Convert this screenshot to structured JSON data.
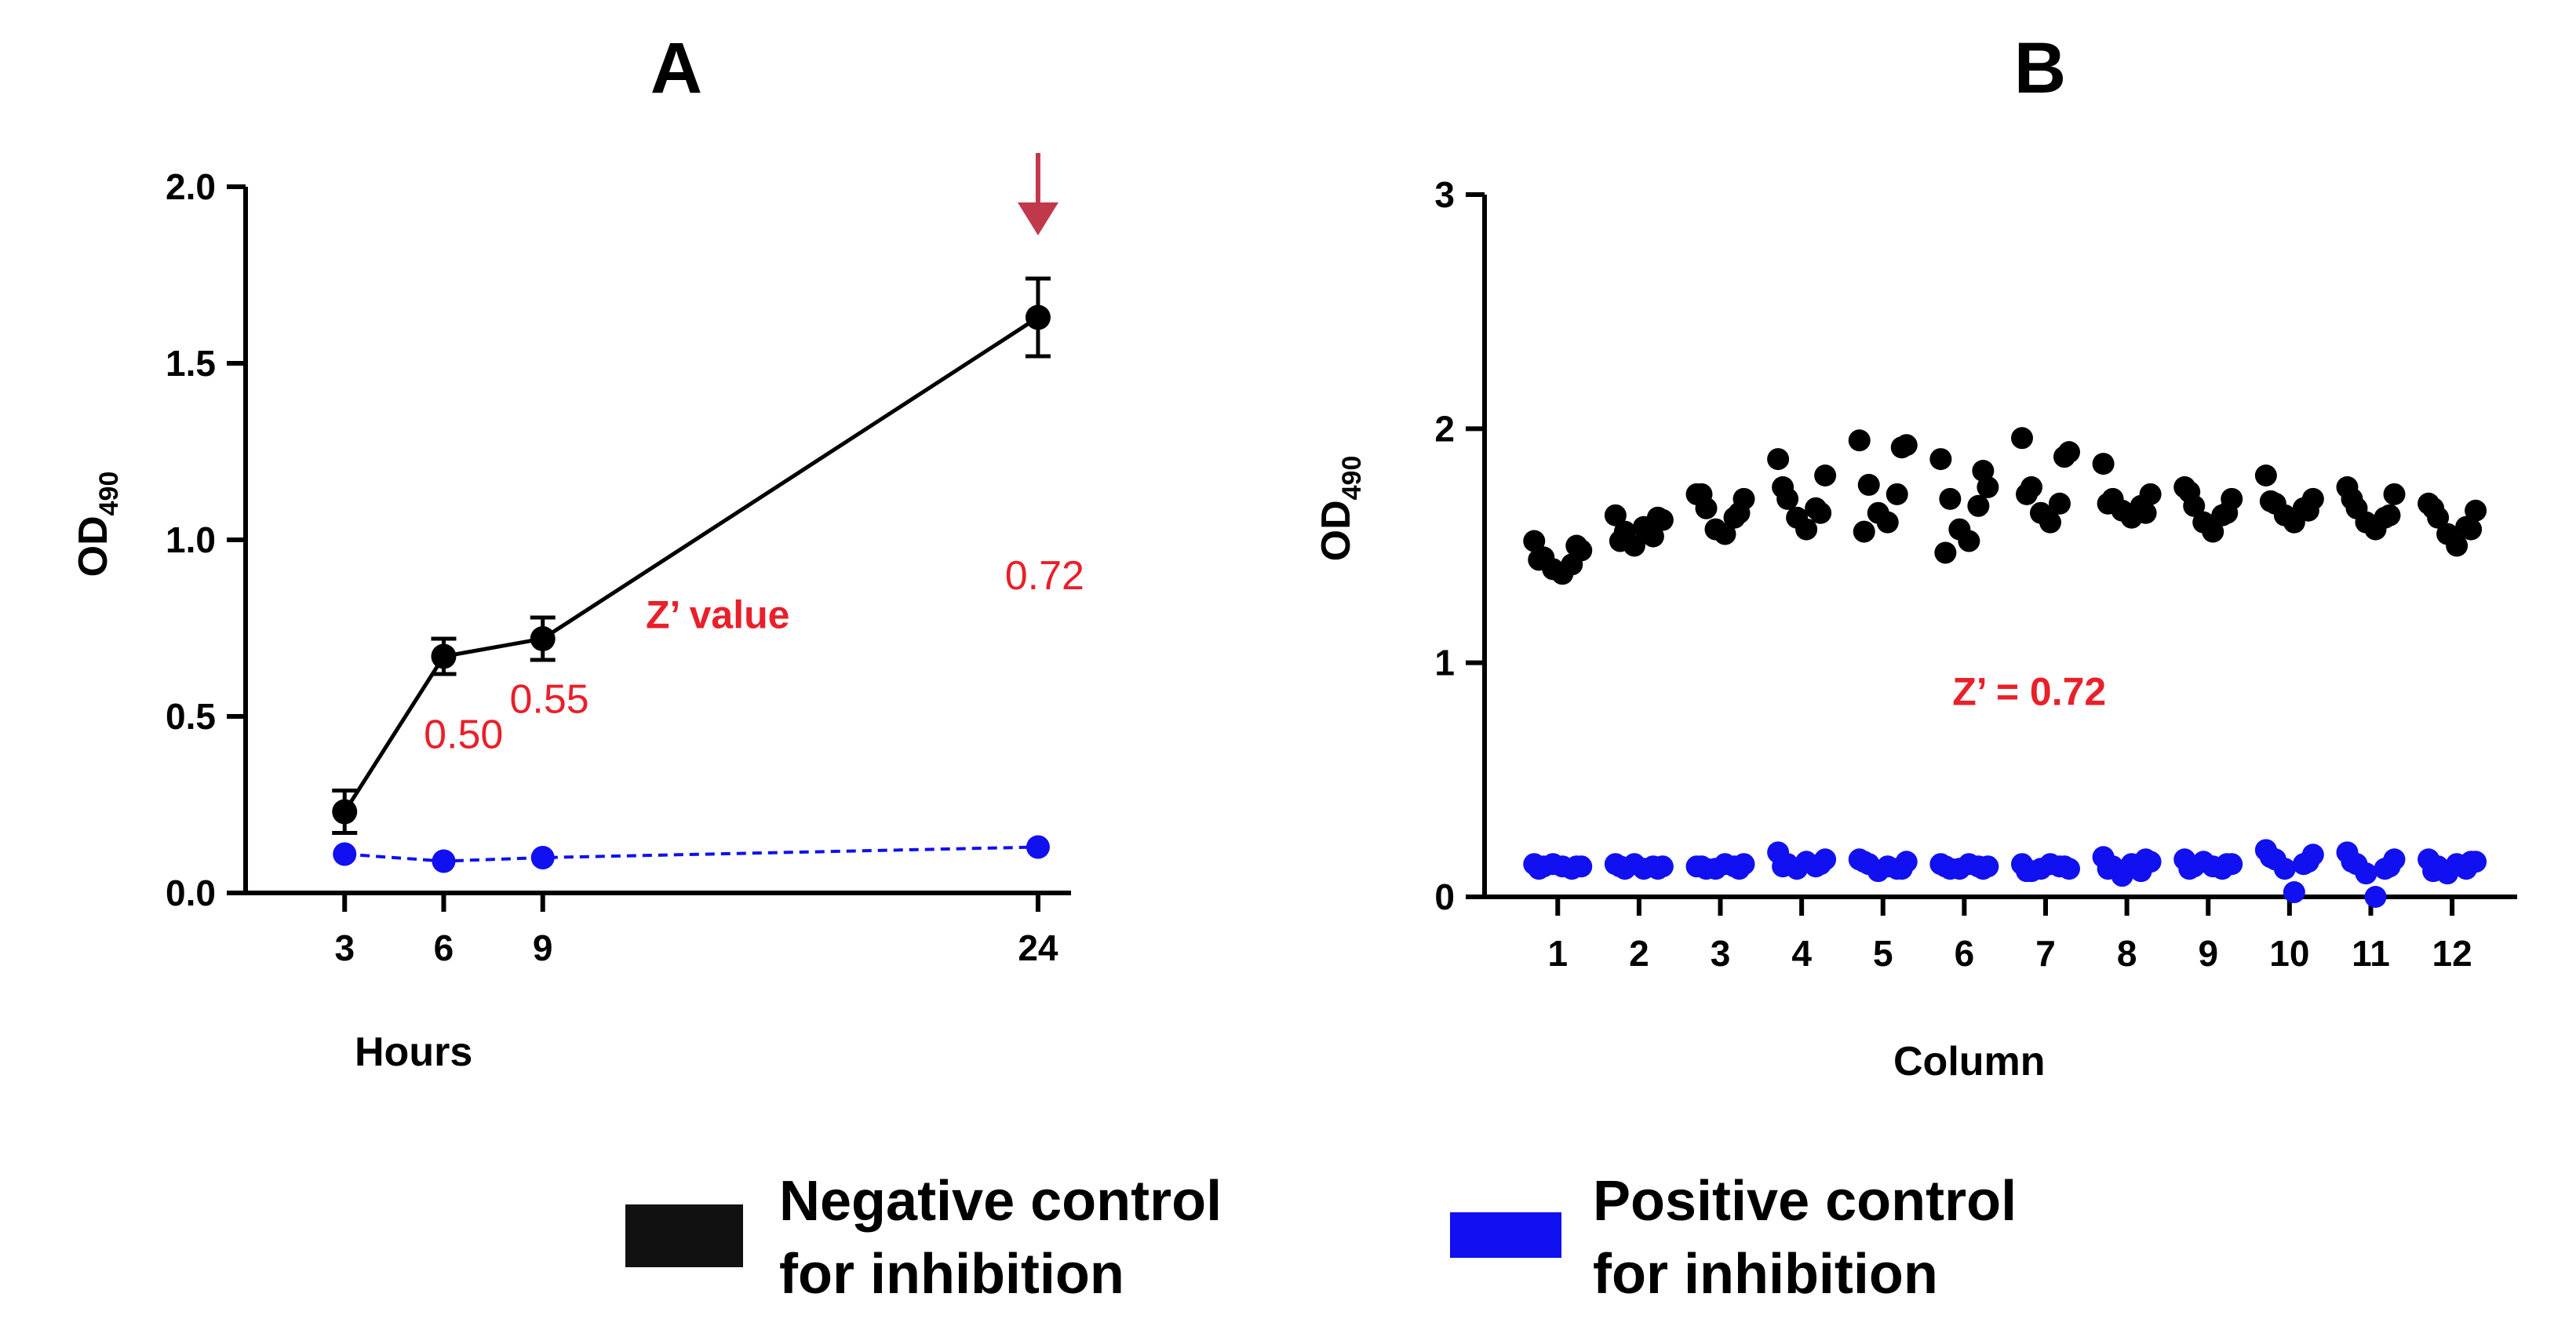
{
  "colors": {
    "negative": "#000000",
    "positive": "#1010f0",
    "annotation": "#e8202a",
    "arrow": "#c0394a"
  },
  "chart_data": [
    {
      "panel": "A",
      "type": "line",
      "title": "A",
      "xlabel": "Hours",
      "ylabel": "OD",
      "ylabel_subscript": "490",
      "x": [
        3,
        6,
        9,
        24
      ],
      "xlim": [
        0,
        25
      ],
      "ylim": [
        0,
        2.0
      ],
      "xticks": [
        "3",
        "6",
        "9",
        "24"
      ],
      "yticks": [
        "0.0",
        "0.5",
        "1.0",
        "1.5",
        "2.0"
      ],
      "series": [
        {
          "name": "Negative control for inhibition",
          "values": [
            0.23,
            0.67,
            0.72,
            1.63
          ],
          "errors": [
            0.06,
            0.05,
            0.06,
            0.11
          ],
          "style": "solid"
        },
        {
          "name": "Positive control for inhibition",
          "values": [
            0.11,
            0.09,
            0.1,
            0.13
          ],
          "style": "dashed"
        }
      ],
      "annotations": [
        {
          "text": "Z’ value",
          "x": 14.3,
          "y": 0.75
        },
        {
          "text": "0.50",
          "x": 6.6,
          "y": 0.41
        },
        {
          "text": "0.55",
          "x": 9.2,
          "y": 0.51
        },
        {
          "text": "0.72",
          "x": 24.2,
          "y": 0.86
        }
      ],
      "arrow_at_x": 24
    },
    {
      "panel": "B",
      "type": "scatter",
      "title": "B",
      "xlabel": "Column",
      "ylabel": "OD",
      "ylabel_subscript": "490",
      "categories": [
        "1",
        "2",
        "3",
        "4",
        "5",
        "6",
        "7",
        "8",
        "9",
        "10",
        "11",
        "12"
      ],
      "xlim": [
        0.1,
        12.8
      ],
      "ylim": [
        0,
        3
      ],
      "yticks": [
        "0",
        "1",
        "2",
        "3"
      ],
      "series": [
        {
          "name": "Negative control for inhibition",
          "points": [
            [
              1,
              [
                1.52,
                1.48,
                1.45,
                1.42,
                1.4,
                1.38,
                1.44,
                1.5
              ]
            ],
            [
              2,
              [
                1.63,
                1.61,
                1.56,
                1.54,
                1.5,
                1.58,
                1.52,
                1.62
              ]
            ],
            [
              3,
              [
                1.72,
                1.7,
                1.66,
                1.62,
                1.57,
                1.55,
                1.72,
                1.64
              ]
            ],
            [
              4,
              [
                1.87,
                1.8,
                1.7,
                1.66,
                1.62,
                1.57,
                1.75,
                1.64
              ]
            ],
            [
              5,
              [
                1.95,
                1.93,
                1.76,
                1.72,
                1.64,
                1.6,
                1.56,
                1.92
              ]
            ],
            [
              6,
              [
                1.87,
                1.75,
                1.7,
                1.67,
                1.57,
                1.52,
                1.47,
                1.82
              ]
            ],
            [
              7,
              [
                1.96,
                1.9,
                1.75,
                1.68,
                1.64,
                1.6,
                1.72,
                1.88
              ]
            ],
            [
              8,
              [
                1.85,
                1.72,
                1.7,
                1.67,
                1.65,
                1.62,
                1.68,
                1.64
              ]
            ],
            [
              9,
              [
                1.75,
                1.7,
                1.67,
                1.63,
                1.6,
                1.56,
                1.73,
                1.64
              ]
            ],
            [
              10,
              [
                1.8,
                1.7,
                1.68,
                1.66,
                1.63,
                1.6,
                1.69,
                1.65
              ]
            ],
            [
              11,
              [
                1.75,
                1.72,
                1.66,
                1.62,
                1.6,
                1.57,
                1.7,
                1.63
              ]
            ],
            [
              12,
              [
                1.68,
                1.65,
                1.62,
                1.58,
                1.55,
                1.5,
                1.66,
                1.57
              ]
            ]
          ]
        },
        {
          "name": "Positive control for inhibition",
          "points": [
            [
              1,
              [
                0.14,
                0.13,
                0.13,
                0.12,
                0.14,
                0.13,
                0.12,
                0.13
              ]
            ],
            [
              2,
              [
                0.14,
                0.13,
                0.12,
                0.13,
                0.14,
                0.12,
                0.13,
                0.12
              ]
            ],
            [
              3,
              [
                0.13,
                0.14,
                0.12,
                0.13,
                0.12,
                0.14,
                0.13,
                0.12
              ]
            ],
            [
              4,
              [
                0.19,
                0.16,
                0.14,
                0.13,
                0.12,
                0.15,
                0.13,
                0.14
              ]
            ],
            [
              5,
              [
                0.16,
                0.15,
                0.14,
                0.12,
                0.11,
                0.13,
                0.15,
                0.12
              ]
            ],
            [
              6,
              [
                0.14,
                0.13,
                0.12,
                0.13,
                0.12,
                0.14,
                0.13,
                0.12
              ]
            ],
            [
              7,
              [
                0.14,
                0.12,
                0.11,
                0.13,
                0.12,
                0.14,
                0.11,
                0.13
              ]
            ],
            [
              8,
              [
                0.17,
                0.15,
                0.13,
                0.11,
                0.09,
                0.14,
                0.12,
                0.16
              ]
            ],
            [
              9,
              [
                0.16,
                0.14,
                0.13,
                0.12,
                0.15,
                0.13,
                0.12,
                0.14
              ]
            ],
            [
              10,
              [
                0.2,
                0.18,
                0.16,
                0.14,
                0.12,
                0.02,
                0.17,
                0.15
              ]
            ],
            [
              11,
              [
                0.19,
                0.16,
                0.14,
                0.12,
                0.1,
                0.0,
                0.15,
                0.13
              ]
            ],
            [
              12,
              [
                0.16,
                0.15,
                0.13,
                0.12,
                0.1,
                0.14,
                0.11,
                0.15
              ]
            ]
          ]
        }
      ],
      "annotations": [
        {
          "text": "Z’ =  0.72",
          "x": 6.8,
          "y": 0.82
        }
      ]
    }
  ],
  "legend": {
    "placement": "bottom-center",
    "items": [
      {
        "line1": "Negative control",
        "line2": "for inhibition",
        "color": "#111111"
      },
      {
        "line1": "Positive control",
        "line2": "for inhibition",
        "color": "#1010f0"
      }
    ]
  }
}
